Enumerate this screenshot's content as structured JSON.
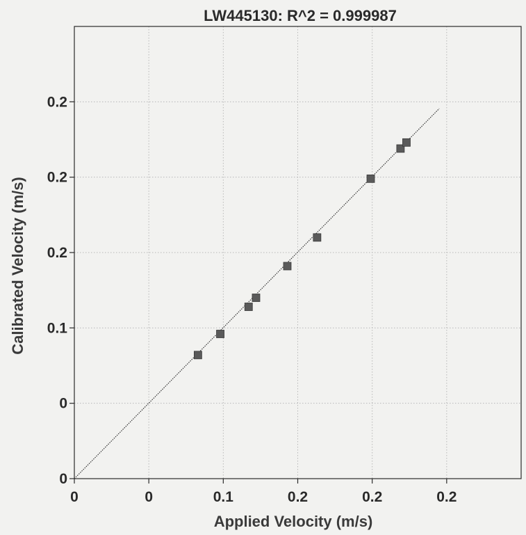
{
  "chart_data": {
    "type": "scatter",
    "title": "LW445130: R^2 = 0.999987",
    "xlabel": "Applied Velocity (m/s)",
    "ylabel": "Calibrated Velocity (m/s)",
    "xlim": [
      0,
      0.3
    ],
    "ylim": [
      0,
      0.3
    ],
    "grid": true,
    "x_ticks": [
      {
        "value": 0.0,
        "label": "0"
      },
      {
        "value": 0.05,
        "label": "0"
      },
      {
        "value": 0.1,
        "label": "0.1"
      },
      {
        "value": 0.15,
        "label": "0.2"
      },
      {
        "value": 0.2,
        "label": "0.2"
      },
      {
        "value": 0.25,
        "label": "0.2"
      }
    ],
    "y_ticks": [
      {
        "value": 0.0,
        "label": "0"
      },
      {
        "value": 0.05,
        "label": "0"
      },
      {
        "value": 0.1,
        "label": "0.1"
      },
      {
        "value": 0.15,
        "label": "0.2"
      },
      {
        "value": 0.2,
        "label": "0.2"
      },
      {
        "value": 0.25,
        "label": "0.2"
      }
    ],
    "points": [
      {
        "x": 0.083,
        "y": 0.082
      },
      {
        "x": 0.098,
        "y": 0.096
      },
      {
        "x": 0.117,
        "y": 0.114
      },
      {
        "x": 0.122,
        "y": 0.12
      },
      {
        "x": 0.143,
        "y": 0.141
      },
      {
        "x": 0.163,
        "y": 0.16
      },
      {
        "x": 0.199,
        "y": 0.199
      },
      {
        "x": 0.219,
        "y": 0.219
      },
      {
        "x": 0.223,
        "y": 0.223
      }
    ],
    "fit_line": {
      "x": [
        0.0,
        0.245
      ],
      "y": [
        0.0,
        0.2455
      ]
    },
    "colors": {
      "marker": "#5a5a5a",
      "line": "#333333",
      "grid": "#b8b8b8",
      "frame": "#2a2a2a"
    }
  }
}
